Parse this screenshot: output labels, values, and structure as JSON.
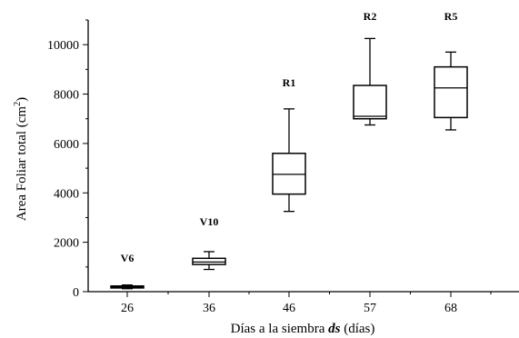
{
  "chart_data": {
    "type": "boxplot",
    "xlabel_prefix": "Días a la siembra ",
    "xlabel_var": "ds",
    "xlabel_suffix": " (días)",
    "ylabel_main": "Area Foliar total (cm",
    "ylabel_sup": "2",
    "ylabel_close": ")",
    "ylim": [
      0,
      11000
    ],
    "yticks": [
      0,
      2000,
      4000,
      6000,
      8000,
      10000
    ],
    "categories": [
      "26",
      "36",
      "46",
      "57",
      "68"
    ],
    "boxes": [
      {
        "x": "26",
        "stage": "V6",
        "whisker_low": 120,
        "q1": 150,
        "median": 190,
        "q3": 230,
        "whisker_high": 270
      },
      {
        "x": "36",
        "stage": "V10",
        "whisker_low": 900,
        "q1": 1100,
        "median": 1200,
        "q3": 1350,
        "whisker_high": 1620
      },
      {
        "x": "46",
        "stage": "R1",
        "whisker_low": 3250,
        "q1": 3950,
        "median": 4750,
        "q3": 5600,
        "whisker_high": 7400
      },
      {
        "x": "57",
        "stage": "R2",
        "whisker_low": 6750,
        "q1": 7000,
        "median": 7100,
        "q3": 8350,
        "whisker_high": 10250
      },
      {
        "x": "68",
        "stage": "R5",
        "whisker_low": 6550,
        "q1": 7050,
        "median": 8250,
        "q3": 9100,
        "whisker_high": 9700
      }
    ]
  }
}
